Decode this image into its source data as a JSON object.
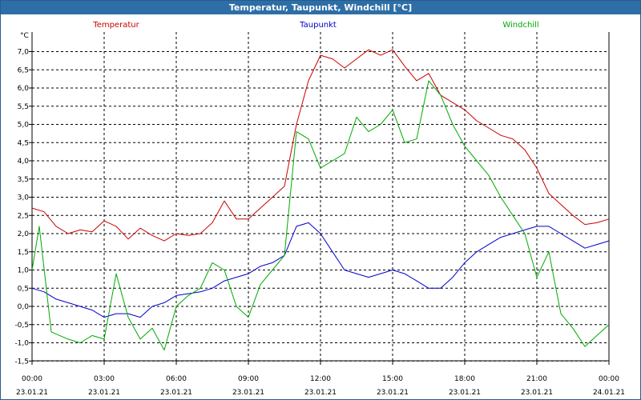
{
  "window": {
    "title": "Temperatur, Taupunkt, Windchill [°C]"
  },
  "chart_data": {
    "type": "line",
    "title": "Temperatur, Taupunkt, Windchill [°C]",
    "ylabel": "°C",
    "ylim": [
      -1.5,
      7.3
    ],
    "y_ticks": [
      "7,0",
      "6,5",
      "6,0",
      "5,5",
      "5,0",
      "4,5",
      "4,0",
      "3,5",
      "3,0",
      "2,5",
      "2,0",
      "1,5",
      "1,0",
      "0,5",
      "0,0",
      "-0,5",
      "-1,0",
      "-1,5"
    ],
    "x_ticks": [
      {
        "time": "00:00",
        "date": "23.01.21"
      },
      {
        "time": "03:00",
        "date": "23.01.21"
      },
      {
        "time": "06:00",
        "date": "23.01.21"
      },
      {
        "time": "09:00",
        "date": "23.01.21"
      },
      {
        "time": "12:00",
        "date": "23.01.21"
      },
      {
        "time": "15:00",
        "date": "23.01.21"
      },
      {
        "time": "18:00",
        "date": "23.01.21"
      },
      {
        "time": "21:00",
        "date": "23.01.21"
      },
      {
        "time": "00:00",
        "date": "24.01.21"
      }
    ],
    "xlim_hours": [
      0,
      24
    ],
    "grid": true,
    "legend_position": "top",
    "series": [
      {
        "name": "Temperatur",
        "color": "#cc0000",
        "points": [
          [
            0,
            2.7
          ],
          [
            0.5,
            2.6
          ],
          [
            1,
            2.2
          ],
          [
            1.5,
            2.0
          ],
          [
            2,
            2.1
          ],
          [
            2.5,
            2.05
          ],
          [
            3,
            2.35
          ],
          [
            3.5,
            2.2
          ],
          [
            4,
            1.85
          ],
          [
            4.5,
            2.15
          ],
          [
            5,
            1.95
          ],
          [
            5.5,
            1.8
          ],
          [
            6,
            2.0
          ],
          [
            6.5,
            1.95
          ],
          [
            7,
            2.0
          ],
          [
            7.5,
            2.3
          ],
          [
            8,
            2.9
          ],
          [
            8.5,
            2.4
          ],
          [
            9,
            2.4
          ],
          [
            9.5,
            2.7
          ],
          [
            10,
            3.0
          ],
          [
            10.5,
            3.3
          ],
          [
            11,
            5.0
          ],
          [
            11.5,
            6.2
          ],
          [
            12,
            6.9
          ],
          [
            12.5,
            6.8
          ],
          [
            13,
            6.55
          ],
          [
            13.5,
            6.8
          ],
          [
            14,
            7.05
          ],
          [
            14.5,
            6.9
          ],
          [
            15,
            7.05
          ],
          [
            15.5,
            6.6
          ],
          [
            16,
            6.2
          ],
          [
            16.5,
            6.4
          ],
          [
            17,
            5.8
          ],
          [
            17.5,
            5.6
          ],
          [
            18,
            5.4
          ],
          [
            18.5,
            5.1
          ],
          [
            19,
            4.9
          ],
          [
            19.5,
            4.7
          ],
          [
            20,
            4.6
          ],
          [
            20.5,
            4.3
          ],
          [
            21,
            3.8
          ],
          [
            21.5,
            3.1
          ],
          [
            22,
            2.8
          ],
          [
            22.5,
            2.5
          ],
          [
            23,
            2.25
          ],
          [
            23.5,
            2.3
          ],
          [
            24,
            2.4
          ]
        ]
      },
      {
        "name": "Taupunkt",
        "color": "#0000cc",
        "points": [
          [
            0,
            0.5
          ],
          [
            0.5,
            0.4
          ],
          [
            1,
            0.2
          ],
          [
            1.5,
            0.1
          ],
          [
            2,
            0.0
          ],
          [
            2.5,
            -0.1
          ],
          [
            3,
            -0.3
          ],
          [
            3.5,
            -0.2
          ],
          [
            4,
            -0.2
          ],
          [
            4.5,
            -0.3
          ],
          [
            5,
            0.0
          ],
          [
            5.5,
            0.1
          ],
          [
            6,
            0.3
          ],
          [
            6.5,
            0.35
          ],
          [
            7,
            0.4
          ],
          [
            7.5,
            0.5
          ],
          [
            8,
            0.7
          ],
          [
            8.5,
            0.8
          ],
          [
            9,
            0.9
          ],
          [
            9.5,
            1.1
          ],
          [
            10,
            1.2
          ],
          [
            10.5,
            1.4
          ],
          [
            11,
            2.2
          ],
          [
            11.5,
            2.3
          ],
          [
            12,
            2.0
          ],
          [
            12.5,
            1.5
          ],
          [
            13,
            1.0
          ],
          [
            13.5,
            0.9
          ],
          [
            14,
            0.8
          ],
          [
            14.5,
            0.9
          ],
          [
            15,
            1.0
          ],
          [
            15.5,
            0.9
          ],
          [
            16,
            0.7
          ],
          [
            16.5,
            0.5
          ],
          [
            17,
            0.5
          ],
          [
            17.5,
            0.8
          ],
          [
            18,
            1.2
          ],
          [
            18.5,
            1.5
          ],
          [
            19,
            1.7
          ],
          [
            19.5,
            1.9
          ],
          [
            20,
            2.0
          ],
          [
            20.5,
            2.1
          ],
          [
            21,
            2.2
          ],
          [
            21.5,
            2.2
          ],
          [
            22,
            2.0
          ],
          [
            22.5,
            1.8
          ],
          [
            23,
            1.6
          ],
          [
            23.5,
            1.7
          ],
          [
            24,
            1.8
          ]
        ]
      },
      {
        "name": "Windchill",
        "color": "#00aa00",
        "points": [
          [
            0,
            1.0
          ],
          [
            0.3,
            2.2
          ],
          [
            0.8,
            -0.7
          ],
          [
            1.5,
            -0.9
          ],
          [
            2,
            -1.0
          ],
          [
            2.5,
            -0.8
          ],
          [
            3,
            -0.9
          ],
          [
            3.5,
            0.9
          ],
          [
            4,
            -0.3
          ],
          [
            4.5,
            -0.9
          ],
          [
            5,
            -0.6
          ],
          [
            5.5,
            -1.2
          ],
          [
            6,
            0.0
          ],
          [
            6.5,
            0.3
          ],
          [
            7,
            0.5
          ],
          [
            7.5,
            1.2
          ],
          [
            8,
            1.0
          ],
          [
            8.5,
            0.0
          ],
          [
            9,
            -0.3
          ],
          [
            9.5,
            0.6
          ],
          [
            10,
            1.0
          ],
          [
            10.5,
            1.4
          ],
          [
            11,
            4.8
          ],
          [
            11.5,
            4.6
          ],
          [
            12,
            3.8
          ],
          [
            12.5,
            4.0
          ],
          [
            13,
            4.2
          ],
          [
            13.5,
            5.2
          ],
          [
            14,
            4.8
          ],
          [
            14.5,
            5.0
          ],
          [
            15,
            5.4
          ],
          [
            15.5,
            4.5
          ],
          [
            16,
            4.6
          ],
          [
            16.5,
            6.2
          ],
          [
            17,
            5.8
          ],
          [
            17.5,
            5.0
          ],
          [
            18,
            4.4
          ],
          [
            18.5,
            4.0
          ],
          [
            19,
            3.6
          ],
          [
            19.5,
            3.0
          ],
          [
            20,
            2.5
          ],
          [
            20.5,
            2.0
          ],
          [
            21,
            0.8
          ],
          [
            21.5,
            1.5
          ],
          [
            22,
            -0.2
          ],
          [
            22.5,
            -0.6
          ],
          [
            23,
            -1.1
          ],
          [
            23.5,
            -0.8
          ],
          [
            24,
            -0.5
          ]
        ]
      }
    ]
  }
}
